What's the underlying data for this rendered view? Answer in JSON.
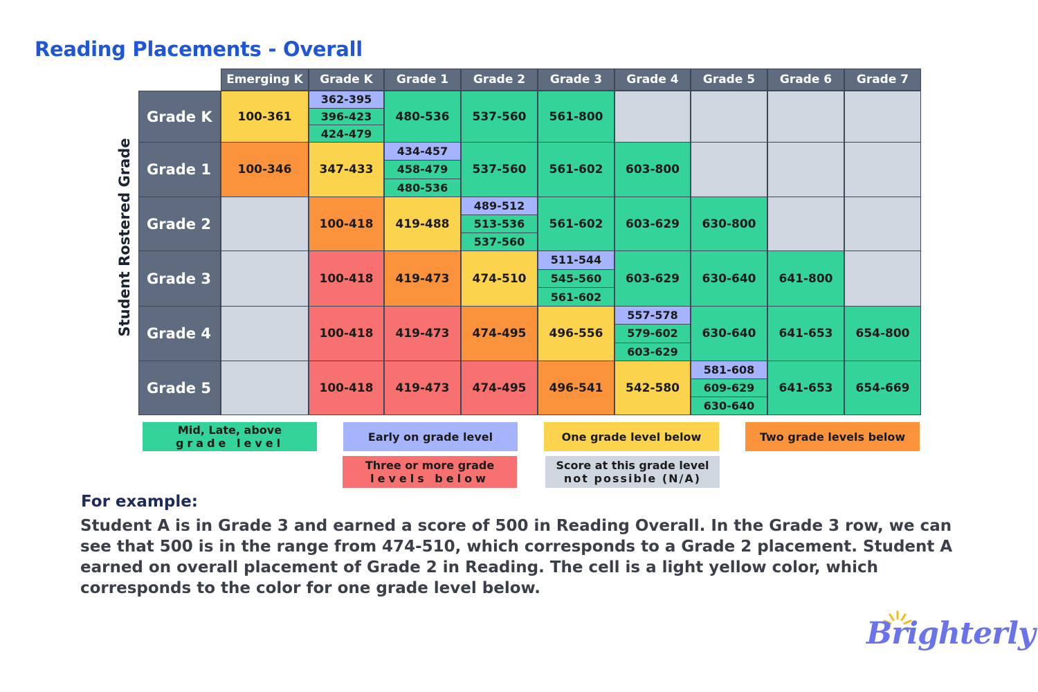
{
  "title": "Reading Placements - Overall",
  "axis_label": "Student Rostered Grade",
  "columns": [
    "Emerging K",
    "Grade K",
    "Grade 1",
    "Grade 2",
    "Grade 3",
    "Grade 4",
    "Grade 5",
    "Grade 6",
    "Grade 7"
  ],
  "rows": [
    {
      "label": "Grade K",
      "cells": [
        "100-361",
        [
          "362-395",
          "396-423",
          "424-479"
        ],
        "480-536",
        "537-560",
        "561-800",
        "",
        "",
        "",
        ""
      ]
    },
    {
      "label": "Grade 1",
      "cells": [
        "100-346",
        "347-433",
        [
          "434-457",
          "458-479",
          "480-536"
        ],
        "537-560",
        "561-602",
        "603-800",
        "",
        "",
        ""
      ]
    },
    {
      "label": "Grade 2",
      "cells": [
        "",
        "100-418",
        "419-488",
        [
          "489-512",
          "513-536",
          "537-560"
        ],
        "561-602",
        "603-629",
        "630-800",
        "",
        ""
      ]
    },
    {
      "label": "Grade 3",
      "cells": [
        "",
        "100-418",
        "419-473",
        "474-510",
        [
          "511-544",
          "545-560",
          "561-602"
        ],
        "603-629",
        "630-640",
        "641-800",
        ""
      ]
    },
    {
      "label": "Grade 4",
      "cells": [
        "",
        "100-418",
        "419-473",
        "474-495",
        "496-556",
        [
          "557-578",
          "579-602",
          "603-629"
        ],
        "630-640",
        "641-653",
        "654-800"
      ]
    },
    {
      "label": "Grade 5",
      "cells": [
        "",
        "100-418",
        "419-473",
        "474-495",
        "496-541",
        "542-580",
        [
          "581-608",
          "609-629",
          "630-640"
        ],
        "641-653",
        "654-669"
      ]
    }
  ],
  "legend": {
    "mid_late_above": [
      "Mid, Late, above",
      "grade level"
    ],
    "early": "Early on grade level",
    "one_below": "One grade level below",
    "two_below": "Two grade levels below",
    "three_below": [
      "Three or more grade",
      "levels below"
    ],
    "not_possible": [
      "Score at this grade level",
      "not possible (N/A)"
    ]
  },
  "colors": {
    "mid_late_above": "#34d399",
    "early": "#a5b4fc",
    "one_below": "#fcd34d",
    "two_below": "#fb923c",
    "three_below": "#f87171",
    "not_possible": "#d0d6df",
    "header": "#5f6c80",
    "title": "#1f56d6"
  },
  "example": {
    "heading": "For example:",
    "body": "Student A is in Grade 3 and earned a score of 500 in Reading Overall. In the Grade 3 row, we can see that 500 is in the range from 474-510, which corresponds to a Grade 2 placement. Student A earned on overall placement of Grade 2 in Reading. The cell is a light yellow color, which corresponds to the color for one grade level below."
  },
  "brand": "Brighterly"
}
